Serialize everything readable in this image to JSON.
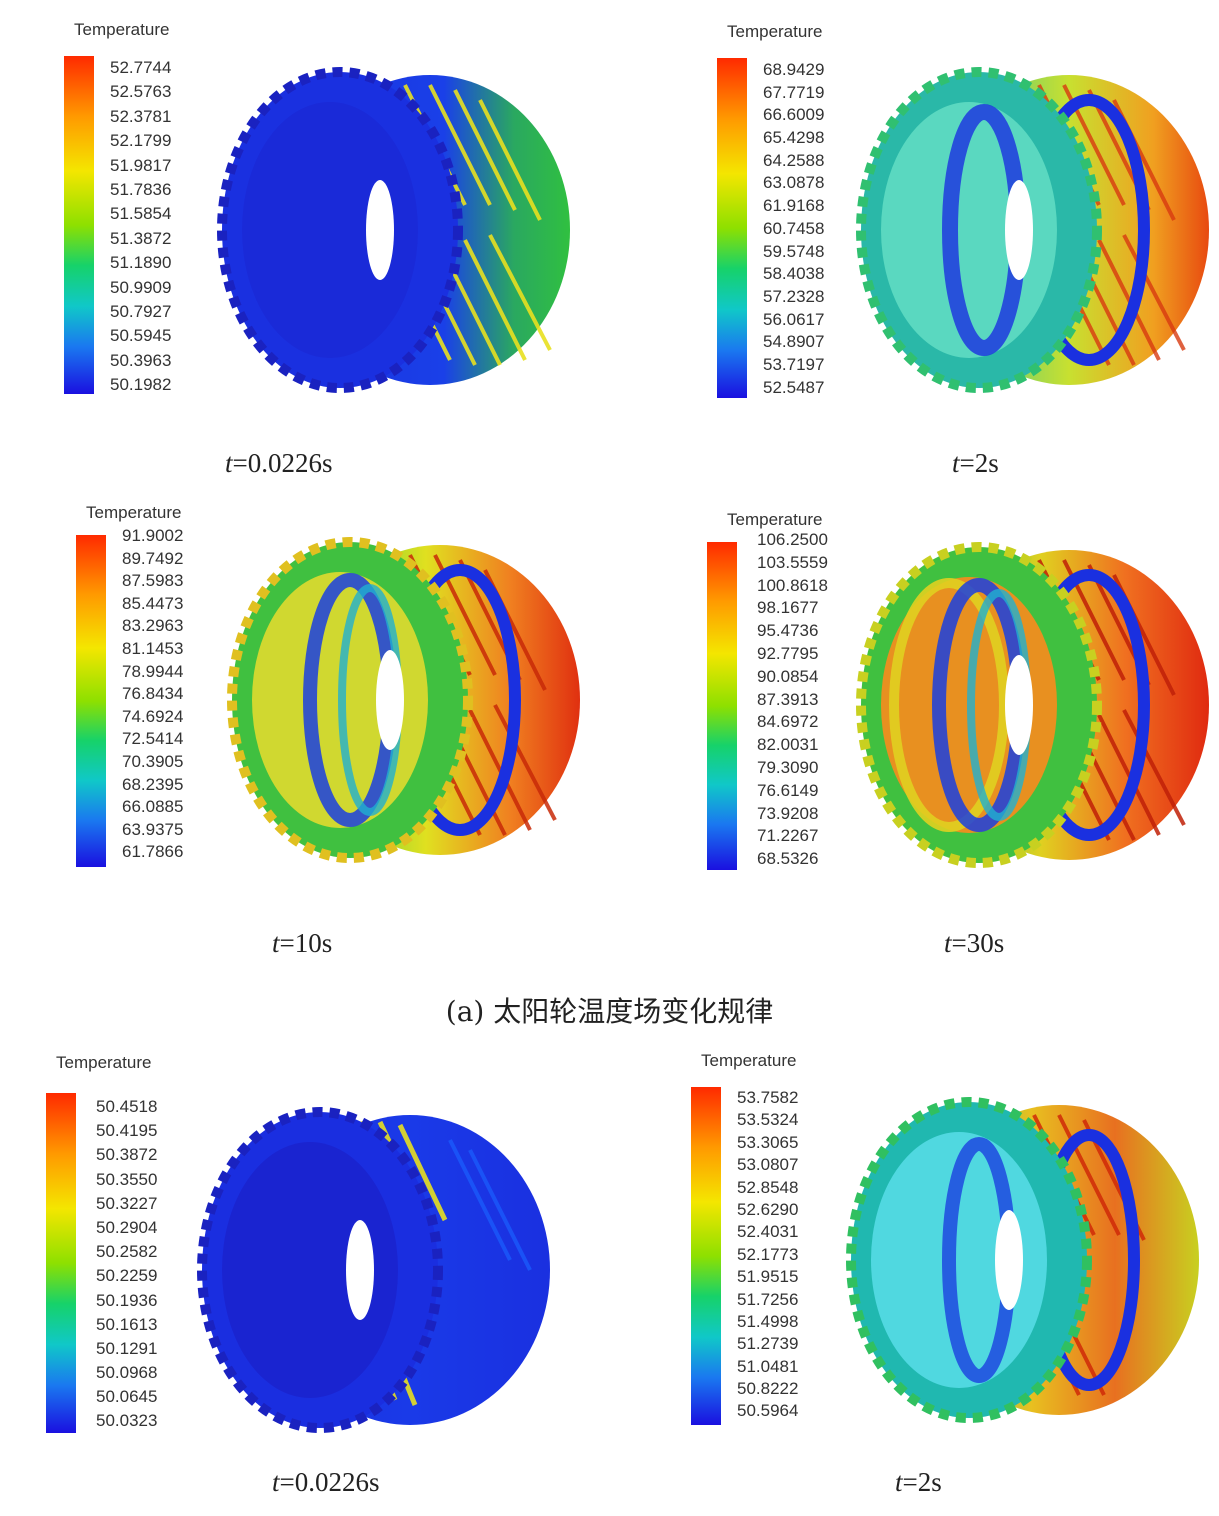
{
  "legend_title": "Temperature",
  "caption": "(a) 太阳轮温度场变化规律",
  "panels": [
    {
      "time_value": "=0.0226s",
      "ticks": [
        "52.7744",
        "52.5763",
        "52.3781",
        "52.1799",
        "51.9817",
        "51.7836",
        "51.5854",
        "51.3872",
        "51.1890",
        "50.9909",
        "50.7927",
        "50.5945",
        "50.3963",
        "50.1982"
      ]
    },
    {
      "time_value": "=2s",
      "ticks": [
        "68.9429",
        "67.7719",
        "66.6009",
        "65.4298",
        "64.2588",
        "63.0878",
        "61.9168",
        "60.7458",
        "59.5748",
        "58.4038",
        "57.2328",
        "56.0617",
        "54.8907",
        "53.7197",
        "52.5487"
      ]
    },
    {
      "time_value": "=10s",
      "ticks": [
        "91.9002",
        "89.7492",
        "87.5983",
        "85.4473",
        "83.2963",
        "81.1453",
        "78.9944",
        "76.8434",
        "74.6924",
        "72.5414",
        "70.3905",
        "68.2395",
        "66.0885",
        "63.9375",
        "61.7866"
      ]
    },
    {
      "time_value": "=30s",
      "ticks": [
        "106.2500",
        "103.5559",
        "100.8618",
        "98.1677",
        "95.4736",
        "92.7795",
        "90.0854",
        "87.3913",
        "84.6972",
        "82.0031",
        "79.3090",
        "76.6149",
        "73.9208",
        "71.2267",
        "68.5326"
      ]
    },
    {
      "time_value": "=0.0226s",
      "ticks": [
        "50.4518",
        "50.4195",
        "50.3872",
        "50.3550",
        "50.3227",
        "50.2904",
        "50.2582",
        "50.2259",
        "50.1936",
        "50.1613",
        "50.1291",
        "50.0968",
        "50.0645",
        "50.0323"
      ]
    },
    {
      "time_value": "=2s",
      "ticks": [
        "53.7582",
        "53.5324",
        "53.3065",
        "53.0807",
        "52.8548",
        "52.6290",
        "52.4031",
        "52.1773",
        "51.9515",
        "51.7256",
        "51.4998",
        "51.2739",
        "51.0481",
        "50.8222",
        "50.5964"
      ]
    }
  ],
  "time_symbol": "t",
  "gear_colors": {
    "cold": "#1a2ee0",
    "cool": "#18b4c8",
    "mid": "#3ccf3c",
    "warm": "#e8e020",
    "hot": "#e23a10"
  }
}
